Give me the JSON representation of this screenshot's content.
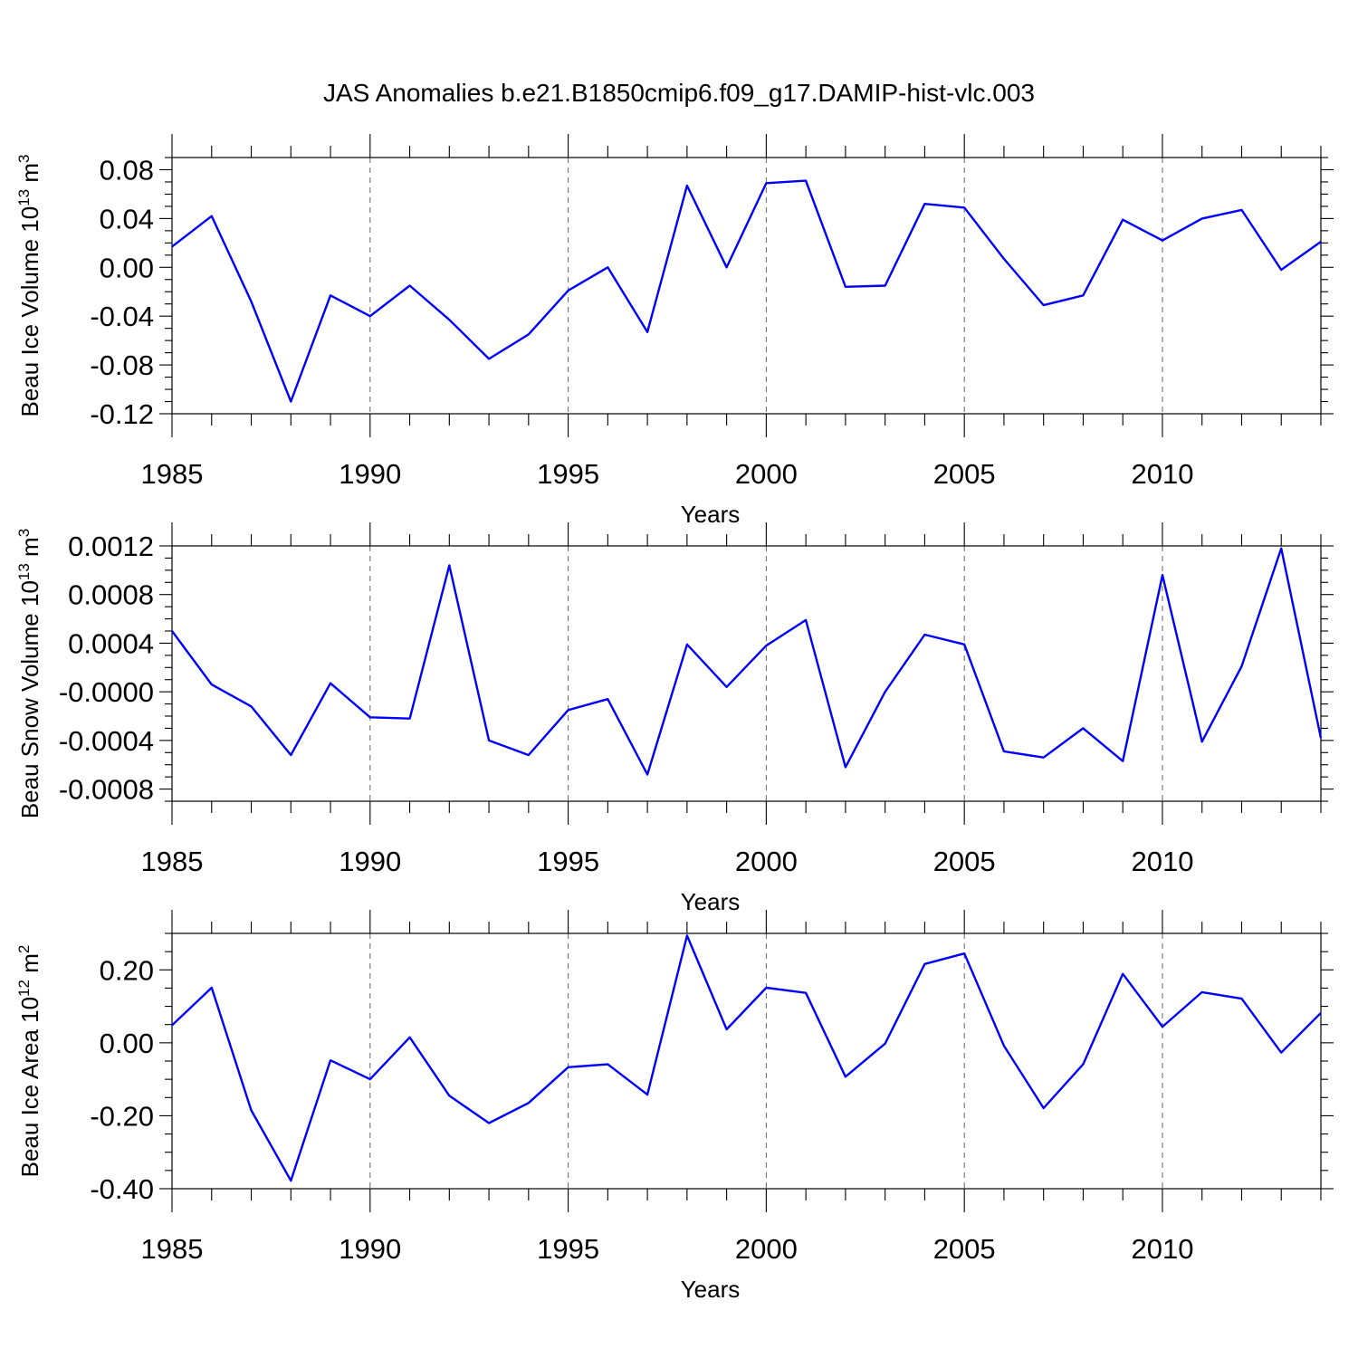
{
  "figure": {
    "title": "JAS Anomalies b.e21.B1850cmip6.f09_g17.DAMIP-hist-vlc.003",
    "line_color": "#0000ff"
  },
  "chart_data": [
    {
      "type": "line",
      "ylabel_text": "Beau Ice Volume 10",
      "ylabel_sup": "13",
      "ylabel_unit": "m",
      "ylabel_unit_sup": "3",
      "xlabel": "Years",
      "xlim": [
        1985,
        2014
      ],
      "ylim": [
        -0.12,
        0.09
      ],
      "grid": "dashed vertical at major x ticks",
      "x_ticks": [
        1985,
        1990,
        1995,
        2000,
        2005,
        2010
      ],
      "x_tick_labels": [
        "1985",
        "1990",
        "1995",
        "2000",
        "2005",
        "2010"
      ],
      "y_ticks": [
        -0.12,
        -0.08,
        -0.04,
        0.0,
        0.04,
        0.08
      ],
      "y_tick_labels": [
        "-0.12",
        "-0.08",
        "-0.04",
        "0.00",
        "0.04",
        "0.08"
      ],
      "x": [
        1985,
        1986,
        1987,
        1988,
        1989,
        1990,
        1991,
        1992,
        1993,
        1994,
        1995,
        1996,
        1997,
        1998,
        1999,
        2000,
        2001,
        2002,
        2003,
        2004,
        2005,
        2006,
        2007,
        2008,
        2009,
        2010,
        2011,
        2012,
        2013,
        2014
      ],
      "values": [
        0.017,
        0.042,
        -0.028,
        -0.11,
        -0.023,
        -0.04,
        -0.015,
        -0.043,
        -0.075,
        -0.055,
        -0.019,
        0.0,
        -0.053,
        0.067,
        0.0,
        0.069,
        0.071,
        -0.016,
        -0.015,
        0.052,
        0.049,
        0.007,
        -0.031,
        -0.023,
        0.039,
        0.022,
        0.04,
        0.047,
        -0.002,
        0.021
      ]
    },
    {
      "type": "line",
      "ylabel_text": "Beau Snow Volume 10",
      "ylabel_sup": "13",
      "ylabel_unit": "m",
      "ylabel_unit_sup": "3",
      "xlabel": "Years",
      "xlim": [
        1985,
        2014
      ],
      "ylim": [
        -0.0009,
        0.0012
      ],
      "grid": "dashed vertical at major x ticks",
      "x_ticks": [
        1985,
        1990,
        1995,
        2000,
        2005,
        2010
      ],
      "x_tick_labels": [
        "1985",
        "1990",
        "1995",
        "2000",
        "2005",
        "2010"
      ],
      "y_ticks": [
        -0.0008,
        -0.0004,
        0.0,
        0.0004,
        0.0008,
        0.0012
      ],
      "y_tick_labels": [
        "-0.0008",
        "-0.0004",
        "-0.0000",
        "0.0004",
        "0.0008",
        "0.0012"
      ],
      "x": [
        1985,
        1986,
        1987,
        1988,
        1989,
        1990,
        1991,
        1992,
        1993,
        1994,
        1995,
        1996,
        1997,
        1998,
        1999,
        2000,
        2001,
        2002,
        2003,
        2004,
        2005,
        2006,
        2007,
        2008,
        2009,
        2010,
        2011,
        2012,
        2013,
        2014
      ],
      "values": [
        0.0005,
        6e-05,
        -0.00012,
        -0.00052,
        7e-05,
        -0.00021,
        -0.00022,
        0.00104,
        -0.0004,
        -0.00052,
        -0.00015,
        -6e-05,
        -0.00068,
        0.00039,
        4e-05,
        0.00038,
        0.00059,
        -0.00062,
        0.0,
        0.00047,
        0.00039,
        -0.00049,
        -0.00054,
        -0.0003,
        -0.00057,
        0.00096,
        -0.00041,
        0.00021,
        0.00118,
        -0.00038
      ]
    },
    {
      "type": "line",
      "ylabel_text": "Beau Ice Area 10",
      "ylabel_sup": "12",
      "ylabel_unit": "m",
      "ylabel_unit_sup": "2",
      "xlabel": "Years",
      "xlim": [
        1985,
        2014
      ],
      "ylim": [
        -0.4,
        0.3
      ],
      "grid": "dashed vertical at major x ticks",
      "x_ticks": [
        1985,
        1990,
        1995,
        2000,
        2005,
        2010
      ],
      "x_tick_labels": [
        "1985",
        "1990",
        "1995",
        "2000",
        "2005",
        "2010"
      ],
      "y_ticks": [
        -0.4,
        -0.2,
        0.0,
        0.2
      ],
      "y_tick_labels": [
        "-0.40",
        "-0.20",
        "0.00",
        "0.20"
      ],
      "x": [
        1985,
        1986,
        1987,
        1988,
        1989,
        1990,
        1991,
        1992,
        1993,
        1994,
        1995,
        1996,
        1997,
        1998,
        1999,
        2000,
        2001,
        2002,
        2003,
        2004,
        2005,
        2006,
        2007,
        2008,
        2009,
        2010,
        2011,
        2012,
        2013,
        2014
      ],
      "values": [
        0.048,
        0.151,
        -0.185,
        -0.378,
        -0.048,
        -0.1,
        0.015,
        -0.145,
        -0.22,
        -0.165,
        -0.067,
        -0.059,
        -0.142,
        0.294,
        0.037,
        0.151,
        0.137,
        -0.093,
        -0.002,
        0.216,
        0.245,
        -0.008,
        -0.179,
        -0.059,
        0.189,
        0.044,
        0.139,
        0.121,
        -0.027,
        0.082
      ]
    }
  ]
}
